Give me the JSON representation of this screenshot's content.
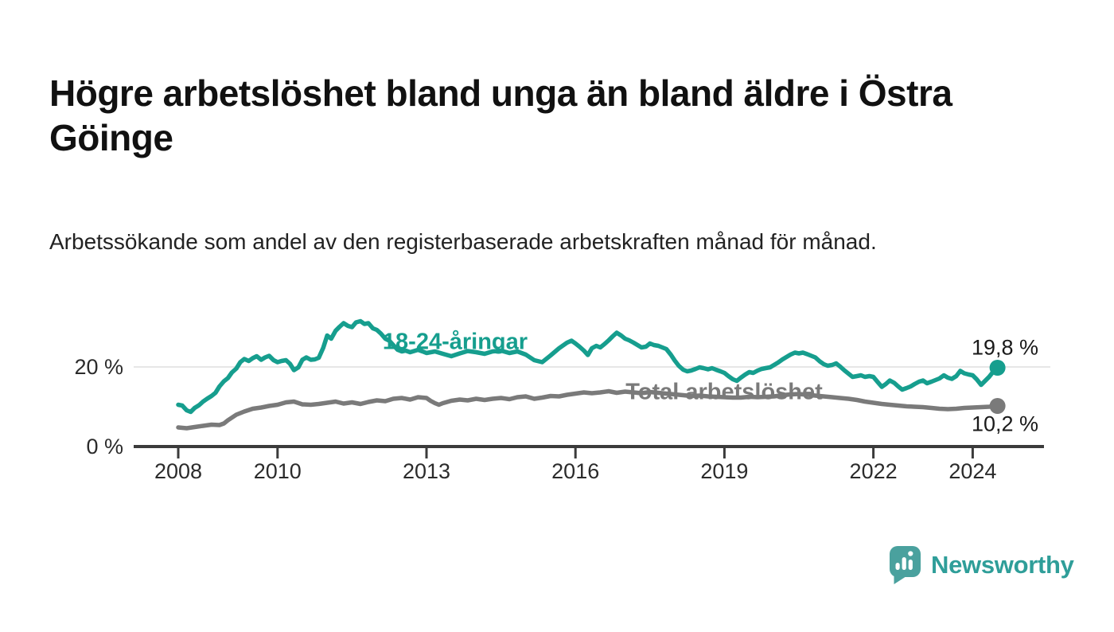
{
  "header": {
    "title": "Högre arbetslöshet bland unga än bland äldre i Östra Göinge",
    "subtitle": "Arbetssökande som andel av den registerbaserade arbetskraften månad för månad."
  },
  "chart_data": {
    "type": "line",
    "unit": "%",
    "x_range": [
      2008,
      2024.6
    ],
    "y_range": [
      0,
      33
    ],
    "grid": "horizontal line at 20 % only, baseline axis at 0 %",
    "legend_position": "labels inline on lines",
    "x_ticks": [
      {
        "value": 2008,
        "label": "2008"
      },
      {
        "value": 2010,
        "label": "2010"
      },
      {
        "value": 2013,
        "label": "2013"
      },
      {
        "value": 2016,
        "label": "2016"
      },
      {
        "value": 2019,
        "label": "2019"
      },
      {
        "value": 2022,
        "label": "2022"
      },
      {
        "value": 2024,
        "label": "2024"
      }
    ],
    "y_ticks": [
      {
        "value": 20,
        "label": "20 %"
      },
      {
        "value": 0,
        "label": "0 %"
      }
    ],
    "series": [
      {
        "name": "18-24-åringar",
        "color": "#169e8e",
        "end_value": 19.8,
        "end_label": "19,8 %",
        "points": [
          [
            2008.0,
            10.5
          ],
          [
            2008.08,
            10.3
          ],
          [
            2008.17,
            9.1
          ],
          [
            2008.25,
            8.7
          ],
          [
            2008.33,
            9.7
          ],
          [
            2008.42,
            10.4
          ],
          [
            2008.5,
            11.3
          ],
          [
            2008.58,
            12.0
          ],
          [
            2008.67,
            12.7
          ],
          [
            2008.75,
            13.5
          ],
          [
            2008.83,
            15.1
          ],
          [
            2008.92,
            16.4
          ],
          [
            2009.0,
            17.2
          ],
          [
            2009.08,
            18.6
          ],
          [
            2009.17,
            19.6
          ],
          [
            2009.25,
            21.2
          ],
          [
            2009.33,
            22.0
          ],
          [
            2009.42,
            21.5
          ],
          [
            2009.5,
            22.2
          ],
          [
            2009.58,
            22.7
          ],
          [
            2009.67,
            21.8
          ],
          [
            2009.75,
            22.4
          ],
          [
            2009.83,
            22.8
          ],
          [
            2009.92,
            21.7
          ],
          [
            2010.0,
            21.2
          ],
          [
            2010.08,
            21.5
          ],
          [
            2010.17,
            21.7
          ],
          [
            2010.25,
            20.8
          ],
          [
            2010.33,
            19.2
          ],
          [
            2010.42,
            19.9
          ],
          [
            2010.5,
            21.8
          ],
          [
            2010.58,
            22.4
          ],
          [
            2010.67,
            21.8
          ],
          [
            2010.75,
            21.9
          ],
          [
            2010.83,
            22.3
          ],
          [
            2010.92,
            24.8
          ],
          [
            2011.0,
            27.9
          ],
          [
            2011.08,
            27.1
          ],
          [
            2011.17,
            29.1
          ],
          [
            2011.25,
            30.1
          ],
          [
            2011.33,
            31.0
          ],
          [
            2011.42,
            30.3
          ],
          [
            2011.5,
            30.0
          ],
          [
            2011.58,
            31.2
          ],
          [
            2011.67,
            31.5
          ],
          [
            2011.75,
            30.8
          ],
          [
            2011.83,
            31.0
          ],
          [
            2011.92,
            29.7
          ],
          [
            2012.0,
            29.3
          ],
          [
            2012.08,
            28.4
          ],
          [
            2012.17,
            27.1
          ],
          [
            2012.25,
            26.6
          ],
          [
            2012.33,
            25.5
          ],
          [
            2012.42,
            24.3
          ],
          [
            2012.5,
            23.9
          ],
          [
            2012.58,
            24.1
          ],
          [
            2012.67,
            23.7
          ],
          [
            2012.75,
            24.0
          ],
          [
            2012.83,
            24.3
          ],
          [
            2012.92,
            23.9
          ],
          [
            2013.0,
            23.5
          ],
          [
            2013.17,
            23.9
          ],
          [
            2013.33,
            23.3
          ],
          [
            2013.5,
            22.7
          ],
          [
            2013.67,
            23.4
          ],
          [
            2013.83,
            24.0
          ],
          [
            2014.0,
            23.7
          ],
          [
            2014.17,
            23.3
          ],
          [
            2014.33,
            23.9
          ],
          [
            2014.5,
            24.1
          ],
          [
            2014.67,
            23.5
          ],
          [
            2014.83,
            23.9
          ],
          [
            2015.0,
            23.1
          ],
          [
            2015.17,
            21.7
          ],
          [
            2015.33,
            21.2
          ],
          [
            2015.5,
            22.9
          ],
          [
            2015.67,
            24.7
          ],
          [
            2015.83,
            26.1
          ],
          [
            2015.92,
            26.6
          ],
          [
            2016.0,
            25.9
          ],
          [
            2016.08,
            25.1
          ],
          [
            2016.17,
            24.1
          ],
          [
            2016.25,
            23.0
          ],
          [
            2016.33,
            24.7
          ],
          [
            2016.42,
            25.3
          ],
          [
            2016.5,
            24.9
          ],
          [
            2016.58,
            25.7
          ],
          [
            2016.67,
            26.7
          ],
          [
            2016.75,
            27.7
          ],
          [
            2016.83,
            28.6
          ],
          [
            2016.92,
            27.9
          ],
          [
            2017.0,
            27.1
          ],
          [
            2017.08,
            26.7
          ],
          [
            2017.17,
            26.1
          ],
          [
            2017.25,
            25.5
          ],
          [
            2017.33,
            24.9
          ],
          [
            2017.42,
            25.1
          ],
          [
            2017.5,
            25.9
          ],
          [
            2017.58,
            25.5
          ],
          [
            2017.67,
            25.3
          ],
          [
            2017.75,
            24.9
          ],
          [
            2017.83,
            24.5
          ],
          [
            2017.92,
            23.1
          ],
          [
            2018.0,
            21.6
          ],
          [
            2018.08,
            20.3
          ],
          [
            2018.17,
            19.3
          ],
          [
            2018.25,
            18.9
          ],
          [
            2018.33,
            19.1
          ],
          [
            2018.42,
            19.5
          ],
          [
            2018.5,
            19.9
          ],
          [
            2018.58,
            19.7
          ],
          [
            2018.67,
            19.4
          ],
          [
            2018.75,
            19.7
          ],
          [
            2018.83,
            19.3
          ],
          [
            2018.92,
            18.9
          ],
          [
            2019.0,
            18.5
          ],
          [
            2019.08,
            17.7
          ],
          [
            2019.17,
            16.9
          ],
          [
            2019.25,
            16.5
          ],
          [
            2019.33,
            17.3
          ],
          [
            2019.42,
            18.1
          ],
          [
            2019.5,
            18.7
          ],
          [
            2019.58,
            18.5
          ],
          [
            2019.67,
            19.1
          ],
          [
            2019.75,
            19.5
          ],
          [
            2019.83,
            19.7
          ],
          [
            2019.92,
            19.9
          ],
          [
            2020.0,
            20.5
          ],
          [
            2020.08,
            21.1
          ],
          [
            2020.17,
            21.9
          ],
          [
            2020.25,
            22.5
          ],
          [
            2020.33,
            23.1
          ],
          [
            2020.42,
            23.6
          ],
          [
            2020.5,
            23.4
          ],
          [
            2020.58,
            23.6
          ],
          [
            2020.67,
            23.2
          ],
          [
            2020.75,
            22.8
          ],
          [
            2020.83,
            22.4
          ],
          [
            2020.92,
            21.4
          ],
          [
            2021.0,
            20.7
          ],
          [
            2021.08,
            20.3
          ],
          [
            2021.17,
            20.5
          ],
          [
            2021.25,
            20.9
          ],
          [
            2021.33,
            20.1
          ],
          [
            2021.42,
            19.1
          ],
          [
            2021.5,
            18.3
          ],
          [
            2021.58,
            17.5
          ],
          [
            2021.67,
            17.7
          ],
          [
            2021.75,
            17.9
          ],
          [
            2021.83,
            17.5
          ],
          [
            2021.92,
            17.7
          ],
          [
            2022.0,
            17.5
          ],
          [
            2022.08,
            16.3
          ],
          [
            2022.17,
            15.0
          ],
          [
            2022.25,
            15.7
          ],
          [
            2022.33,
            16.6
          ],
          [
            2022.42,
            16.0
          ],
          [
            2022.5,
            15.1
          ],
          [
            2022.58,
            14.3
          ],
          [
            2022.67,
            14.7
          ],
          [
            2022.75,
            15.1
          ],
          [
            2022.83,
            15.7
          ],
          [
            2022.92,
            16.3
          ],
          [
            2023.0,
            16.6
          ],
          [
            2023.08,
            15.9
          ],
          [
            2023.17,
            16.3
          ],
          [
            2023.25,
            16.7
          ],
          [
            2023.33,
            17.1
          ],
          [
            2023.42,
            17.9
          ],
          [
            2023.5,
            17.3
          ],
          [
            2023.58,
            17.0
          ],
          [
            2023.67,
            17.7
          ],
          [
            2023.75,
            19.0
          ],
          [
            2023.83,
            18.4
          ],
          [
            2023.92,
            18.1
          ],
          [
            2024.0,
            17.9
          ],
          [
            2024.08,
            16.9
          ],
          [
            2024.17,
            15.5
          ],
          [
            2024.25,
            16.5
          ],
          [
            2024.33,
            17.5
          ],
          [
            2024.42,
            18.9
          ],
          [
            2024.5,
            19.8
          ]
        ]
      },
      {
        "name": "Total arbetslöshet",
        "color": "#7a7a7a",
        "end_value": 10.2,
        "end_label": "10,2 %",
        "points": [
          [
            2008.0,
            4.8
          ],
          [
            2008.17,
            4.6
          ],
          [
            2008.33,
            4.9
          ],
          [
            2008.5,
            5.2
          ],
          [
            2008.67,
            5.5
          ],
          [
            2008.83,
            5.4
          ],
          [
            2008.92,
            5.8
          ],
          [
            2009.0,
            6.6
          ],
          [
            2009.17,
            8.0
          ],
          [
            2009.33,
            8.8
          ],
          [
            2009.5,
            9.5
          ],
          [
            2009.67,
            9.8
          ],
          [
            2009.83,
            10.2
          ],
          [
            2010.0,
            10.5
          ],
          [
            2010.17,
            11.1
          ],
          [
            2010.33,
            11.3
          ],
          [
            2010.5,
            10.6
          ],
          [
            2010.67,
            10.5
          ],
          [
            2010.83,
            10.7
          ],
          [
            2011.0,
            11.0
          ],
          [
            2011.17,
            11.3
          ],
          [
            2011.33,
            10.8
          ],
          [
            2011.5,
            11.1
          ],
          [
            2011.67,
            10.7
          ],
          [
            2011.83,
            11.2
          ],
          [
            2012.0,
            11.6
          ],
          [
            2012.17,
            11.4
          ],
          [
            2012.33,
            12.0
          ],
          [
            2012.5,
            12.2
          ],
          [
            2012.67,
            11.8
          ],
          [
            2012.83,
            12.4
          ],
          [
            2013.0,
            12.2
          ],
          [
            2013.08,
            11.5
          ],
          [
            2013.17,
            10.9
          ],
          [
            2013.25,
            10.5
          ],
          [
            2013.33,
            10.9
          ],
          [
            2013.5,
            11.5
          ],
          [
            2013.67,
            11.8
          ],
          [
            2013.83,
            11.6
          ],
          [
            2014.0,
            12.0
          ],
          [
            2014.17,
            11.7
          ],
          [
            2014.33,
            12.0
          ],
          [
            2014.5,
            12.2
          ],
          [
            2014.67,
            11.9
          ],
          [
            2014.83,
            12.4
          ],
          [
            2015.0,
            12.6
          ],
          [
            2015.17,
            12.0
          ],
          [
            2015.33,
            12.3
          ],
          [
            2015.5,
            12.7
          ],
          [
            2015.67,
            12.6
          ],
          [
            2015.83,
            13.0
          ],
          [
            2016.0,
            13.3
          ],
          [
            2016.17,
            13.6
          ],
          [
            2016.33,
            13.4
          ],
          [
            2016.5,
            13.6
          ],
          [
            2016.67,
            13.9
          ],
          [
            2016.83,
            13.5
          ],
          [
            2017.0,
            13.8
          ],
          [
            2017.17,
            13.6
          ],
          [
            2017.33,
            13.4
          ],
          [
            2017.5,
            13.7
          ],
          [
            2017.67,
            13.5
          ],
          [
            2017.83,
            13.3
          ],
          [
            2018.0,
            13.1
          ],
          [
            2018.17,
            12.9
          ],
          [
            2018.33,
            12.7
          ],
          [
            2018.5,
            12.8
          ],
          [
            2018.67,
            12.6
          ],
          [
            2018.83,
            12.5
          ],
          [
            2019.0,
            12.4
          ],
          [
            2019.17,
            12.3
          ],
          [
            2019.33,
            12.3
          ],
          [
            2019.5,
            12.5
          ],
          [
            2019.67,
            12.4
          ],
          [
            2019.83,
            12.5
          ],
          [
            2020.0,
            12.6
          ],
          [
            2020.17,
            12.9
          ],
          [
            2020.33,
            13.1
          ],
          [
            2020.5,
            13.2
          ],
          [
            2020.67,
            13.0
          ],
          [
            2020.83,
            12.8
          ],
          [
            2021.0,
            12.6
          ],
          [
            2021.17,
            12.4
          ],
          [
            2021.33,
            12.2
          ],
          [
            2021.5,
            12.0
          ],
          [
            2021.67,
            11.7
          ],
          [
            2021.83,
            11.3
          ],
          [
            2022.0,
            11.0
          ],
          [
            2022.17,
            10.7
          ],
          [
            2022.33,
            10.5
          ],
          [
            2022.5,
            10.3
          ],
          [
            2022.67,
            10.1
          ],
          [
            2022.83,
            10.0
          ],
          [
            2023.0,
            9.9
          ],
          [
            2023.17,
            9.7
          ],
          [
            2023.33,
            9.5
          ],
          [
            2023.5,
            9.4
          ],
          [
            2023.67,
            9.5
          ],
          [
            2023.83,
            9.7
          ],
          [
            2024.0,
            9.8
          ],
          [
            2024.17,
            9.9
          ],
          [
            2024.33,
            10.0
          ],
          [
            2024.5,
            10.2
          ]
        ]
      }
    ]
  },
  "axis_colors": {
    "axis_line": "#3b3b3b",
    "grid_line": "#dedede",
    "tick_text": "#2b2b2b"
  },
  "branding": {
    "logo_text": "Newsworthy",
    "logo_text_color": "#2f9e99",
    "logo_icon_color": "#4aa19e"
  }
}
